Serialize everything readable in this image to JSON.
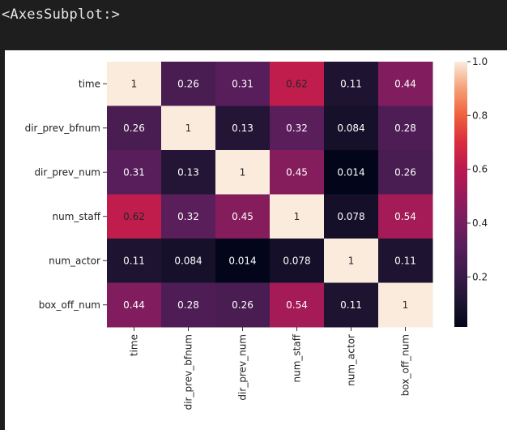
{
  "output_label": "<AxesSubplot:>",
  "chart_data": {
    "type": "heatmap",
    "title": "",
    "row_labels": [
      "time",
      "dir_prev_bfnum",
      "dir_prev_num",
      "num_staff",
      "num_actor",
      "box_off_num"
    ],
    "col_labels": [
      "time",
      "dir_prev_bfnum",
      "dir_prev_num",
      "num_staff",
      "num_actor",
      "box_off_num"
    ],
    "values": [
      [
        1,
        0.26,
        0.31,
        0.62,
        0.11,
        0.44
      ],
      [
        0.26,
        1,
        0.13,
        0.32,
        0.084,
        0.28
      ],
      [
        0.31,
        0.13,
        1,
        0.45,
        0.014,
        0.26
      ],
      [
        0.62,
        0.32,
        0.45,
        1,
        0.078,
        0.54
      ],
      [
        0.11,
        0.084,
        0.014,
        0.078,
        1,
        0.11
      ],
      [
        0.44,
        0.28,
        0.26,
        0.54,
        0.11,
        1
      ]
    ],
    "annotations": [
      [
        "1",
        "0.26",
        "0.31",
        "0.62",
        "0.11",
        "0.44"
      ],
      [
        "0.26",
        "1",
        "0.13",
        "0.32",
        "0.084",
        "0.28"
      ],
      [
        "0.31",
        "0.13",
        "1",
        "0.45",
        "0.014",
        "0.26"
      ],
      [
        "0.62",
        "0.32",
        "0.45",
        "1",
        "0.078",
        "0.54"
      ],
      [
        "0.11",
        "0.084",
        "0.014",
        "0.078",
        "1",
        "0.11"
      ],
      [
        "0.44",
        "0.28",
        "0.26",
        "0.54",
        "0.11",
        "1"
      ]
    ],
    "colormap": "rocket",
    "vmin": 0.014,
    "vmax": 1.0,
    "colorbar_ticks": [
      0.2,
      0.4,
      0.6,
      0.8,
      1.0
    ],
    "colorbar_tick_labels": [
      "0.2",
      "0.4",
      "0.6",
      "0.8",
      "1.0"
    ]
  }
}
